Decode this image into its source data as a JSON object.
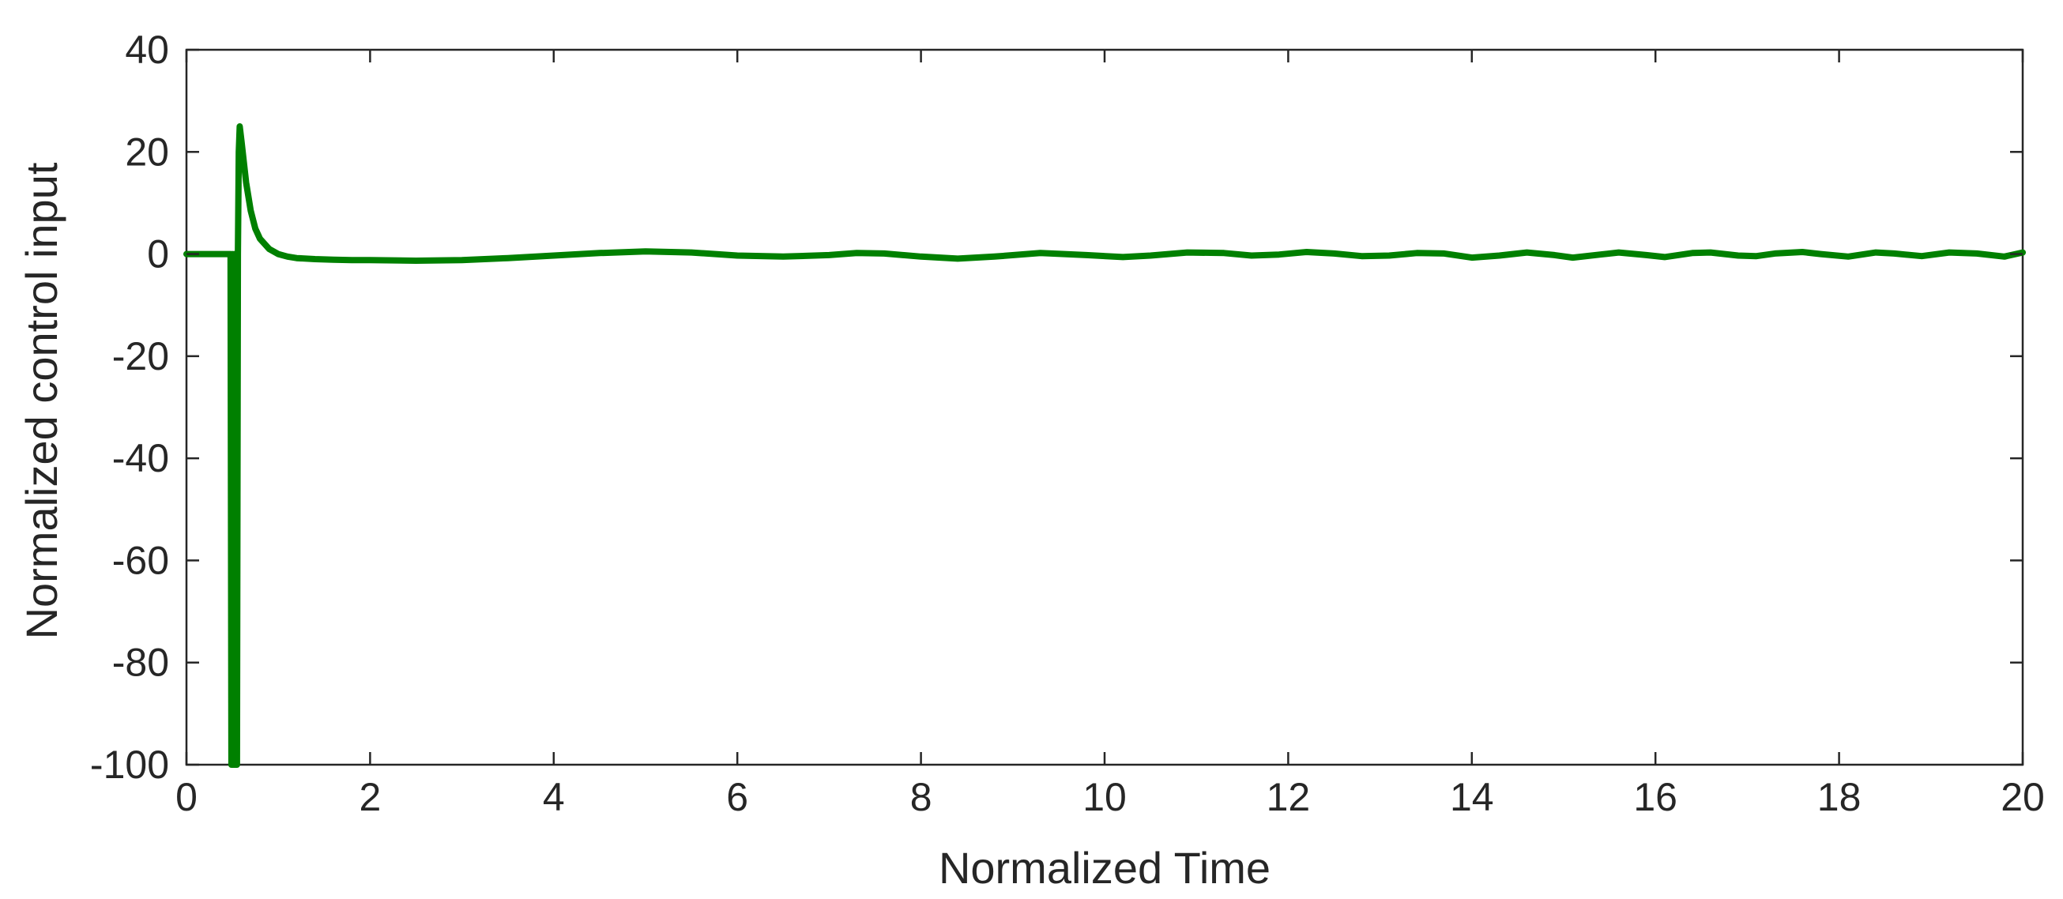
{
  "chart_data": {
    "type": "line",
    "title": "",
    "xlabel": "Normalized Time",
    "ylabel": "Normalized control input",
    "xlim": [
      0,
      20
    ],
    "ylim": [
      -100,
      40
    ],
    "xticks": [
      0,
      2,
      4,
      6,
      8,
      10,
      12,
      14,
      16,
      18,
      20
    ],
    "yticks": [
      -100,
      -80,
      -60,
      -40,
      -20,
      0,
      20,
      40
    ],
    "grid": false,
    "legend": "none",
    "series": [
      {
        "color": "#008000",
        "x": [
          0,
          0.48,
          0.49,
          0.5,
          0.51,
          0.52,
          0.53,
          0.54,
          0.55,
          0.56,
          0.57,
          0.58,
          0.6,
          0.65,
          0.7,
          0.75,
          0.8,
          0.9,
          1.0,
          1.1,
          1.2,
          1.4,
          1.6,
          1.8,
          2.0,
          2.5,
          3.0,
          3.5,
          4.0,
          4.5,
          5.0,
          5.5,
          6.0,
          6.5,
          7.0,
          7.3,
          7.6,
          8.0,
          8.4,
          8.8,
          9.3,
          9.8,
          10.2,
          10.5,
          10.9,
          11.3,
          11.6,
          11.9,
          12.2,
          12.5,
          12.8,
          13.1,
          13.4,
          13.7,
          14.0,
          14.3,
          14.6,
          14.9,
          15.1,
          15.4,
          15.6,
          15.9,
          16.1,
          16.4,
          16.6,
          16.9,
          17.1,
          17.3,
          17.6,
          17.8,
          18.1,
          18.4,
          18.6,
          18.9,
          19.2,
          19.5,
          19.8,
          20.0
        ],
        "y": [
          0,
          0,
          -100,
          0,
          -100,
          0,
          -100,
          0,
          -100,
          0,
          20,
          25,
          22,
          14,
          8.5,
          5,
          3,
          1,
          0,
          -0.5,
          -0.8,
          -1,
          -1.1,
          -1.2,
          -1.2,
          -1.3,
          -1.2,
          -0.8,
          -0.3,
          0.2,
          0.5,
          0.3,
          -0.3,
          -0.5,
          -0.2,
          0.2,
          0.1,
          -0.5,
          -0.9,
          -0.5,
          0.2,
          -0.2,
          -0.6,
          -0.3,
          0.3,
          0.2,
          -0.3,
          -0.1,
          0.4,
          0.1,
          -0.4,
          -0.3,
          0.2,
          0.1,
          -0.7,
          -0.3,
          0.3,
          -0.2,
          -0.7,
          -0.1,
          0.3,
          -0.2,
          -0.6,
          0.2,
          0.3,
          -0.3,
          -0.4,
          0.1,
          0.4,
          0.0,
          -0.5,
          0.3,
          0.1,
          -0.4,
          0.3,
          0.1,
          -0.5,
          0.3
        ]
      }
    ]
  }
}
